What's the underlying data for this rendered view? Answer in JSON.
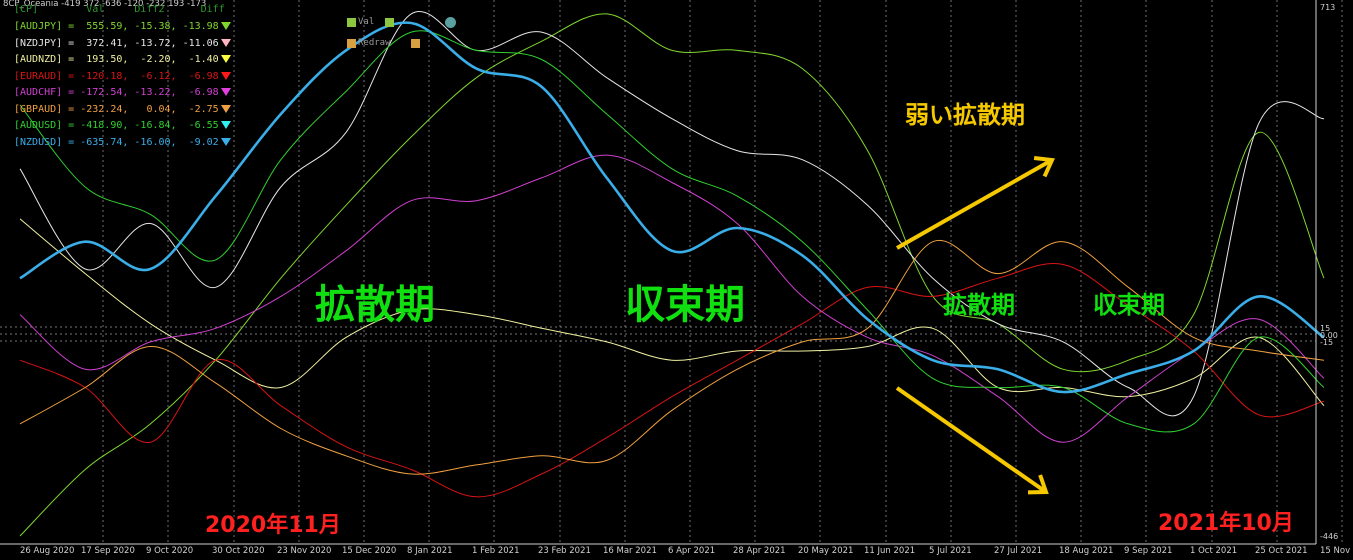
{
  "title": "8CP_Oceania -419 372 -636 -120 -232 193 -173",
  "legend_header": "[CP]        Val     Diff2      Diff",
  "legend_rows": [
    {
      "pair": "[AUDJPY]",
      "val": "555.59",
      "diff2": "-15.38",
      "diff": "-13.98",
      "color": "#7fd62f",
      "arrow": "#7fd62f"
    },
    {
      "pair": "[NZDJPY]",
      "val": "372.41",
      "diff2": "-13.72",
      "diff": "-11.06",
      "color": "#e6e6e6",
      "arrow": "#ffb6c1"
    },
    {
      "pair": "[AUDNZD]",
      "val": "193.50",
      "diff2": "-2.20",
      "diff": "-1.40",
      "color": "#f0f0a0",
      "arrow": "#ffff40"
    },
    {
      "pair": "[EURAUD]",
      "val": "-120.18",
      "diff2": "-6.12",
      "diff": "-6.98",
      "color": "#d81414",
      "arrow": "#ff1a1a"
    },
    {
      "pair": "[AUDCHF]",
      "val": "-172.54",
      "diff2": "-13.22",
      "diff": "-6.98",
      "color": "#d040d0",
      "arrow": "#e040e0"
    },
    {
      "pair": "[GBPAUD]",
      "val": "-232.24",
      "diff2": "0.04",
      "diff": "-2.75",
      "color": "#f0a040",
      "arrow": "#f0a040"
    },
    {
      "pair": "[AUDUSD]",
      "val": "-418.90",
      "diff2": "-16.84",
      "diff": "-6.55",
      "color": "#30d030",
      "arrow": "#30f0f0"
    },
    {
      "pair": "[NZDUSD]",
      "val": "-635.74",
      "diff2": "-16.00",
      "diff": "-9.02",
      "color": "#3aaee8",
      "arrow": "#3aaee8"
    }
  ],
  "buttons": {
    "val_label": "Val",
    "redraw_label": "Redraw",
    "val_color": "#8dc63f",
    "redraw_color": "#d9a040",
    "dot_color": "#5aa0a0"
  },
  "annotations": {
    "diverge1": "拡散期",
    "converge1": "収束期",
    "diverge2": "拡散期",
    "converge2": "収束期",
    "weak_diverge": "弱い拡散期",
    "start_label": "2020年11月",
    "end_label": "2021年10月"
  },
  "colors": {
    "arrow": "#f5c800",
    "grid": "#c8c8c8",
    "axis_text": "#cfcfcf"
  },
  "chart_data": {
    "type": "line",
    "x": [
      "26 Aug 2020",
      "17 Sep 2020",
      "9 Oct 2020",
      "30 Oct 2020",
      "23 Nov 2020",
      "15 Dec 2020",
      "8 Jan 2021",
      "1 Feb 2021",
      "23 Feb 2021",
      "16 Mar 2021",
      "6 Apr 2021",
      "28 Apr 2021",
      "20 May 2021",
      "11 Jun 2021",
      "5 Jul 2021",
      "27 Jul 2021",
      "18 Aug 2021",
      "9 Sep 2021",
      "1 Oct 2021",
      "25 Oct 2021",
      "15 Nov 2021"
    ],
    "y_ticks": [
      "713",
      "15",
      "0.00",
      "-15",
      "-446"
    ],
    "ylim": [
      -446,
      713
    ],
    "series": [
      {
        "name": "AUDJPY",
        "color": "#7fd62f",
        "values": [
          -446,
          -300,
          -200,
          -60,
          120,
          280,
          430,
          560,
          640,
          700,
          620,
          620,
          580,
          400,
          80,
          20,
          -80,
          -60,
          40,
          440,
          120
        ]
      },
      {
        "name": "NZDJPY",
        "color": "#e6e6e6",
        "values": [
          360,
          140,
          240,
          100,
          320,
          440,
          700,
          620,
          660,
          560,
          470,
          400,
          380,
          280,
          120,
          20,
          -20,
          -120,
          -140,
          460,
          470
        ]
      },
      {
        "name": "AUDNZD",
        "color": "#f0f0a0",
        "values": [
          250,
          130,
          20,
          -60,
          -120,
          -10,
          50,
          40,
          10,
          -20,
          -60,
          -40,
          -40,
          -30,
          10,
          -120,
          -120,
          -140,
          -100,
          -10,
          -160
        ]
      },
      {
        "name": "EURAUD",
        "color": "#d81414",
        "values": [
          -60,
          -120,
          -240,
          -60,
          -160,
          -250,
          -300,
          -360,
          -310,
          -230,
          -140,
          -60,
          20,
          100,
          80,
          120,
          150,
          60,
          -40,
          -180,
          -150
        ]
      },
      {
        "name": "AUDCHF",
        "color": "#d040d0",
        "values": [
          40,
          -80,
          -20,
          10,
          80,
          180,
          290,
          290,
          340,
          390,
          330,
          240,
          80,
          -10,
          -50,
          -140,
          -240,
          -140,
          -40,
          30,
          -100
        ]
      },
      {
        "name": "GBPAUD",
        "color": "#f0a040",
        "values": [
          -200,
          -120,
          -30,
          -110,
          -210,
          -270,
          -310,
          -290,
          -270,
          -280,
          -170,
          -80,
          -20,
          10,
          200,
          130,
          200,
          100,
          -10,
          -40,
          -60
        ]
      },
      {
        "name": "AUDUSD",
        "color": "#30d030",
        "values": [
          500,
          320,
          260,
          160,
          380,
          530,
          660,
          620,
          600,
          480,
          360,
          300,
          200,
          50,
          -100,
          -120,
          -120,
          -200,
          -200,
          -10,
          -120
        ]
      },
      {
        "name": "NZDUSD",
        "color": "#3aaee8",
        "values": [
          120,
          200,
          140,
          300,
          480,
          620,
          680,
          580,
          540,
          340,
          180,
          230,
          170,
          30,
          -60,
          -80,
          -130,
          -90,
          -40,
          80,
          -10
        ]
      }
    ]
  }
}
